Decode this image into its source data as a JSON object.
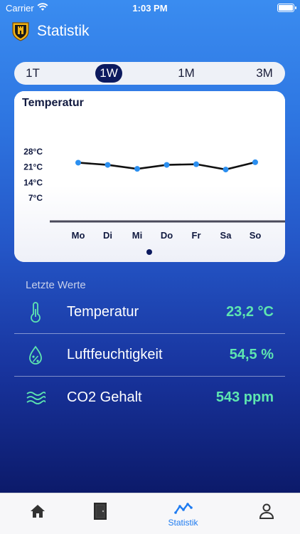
{
  "status_bar": {
    "carrier": "Carrier",
    "time": "1:03 PM"
  },
  "header": {
    "title": "Statistik",
    "logo_icon": "shield-crest-icon"
  },
  "segment": {
    "items": [
      {
        "label": "1T",
        "active": false
      },
      {
        "label": "1W",
        "active": true
      },
      {
        "label": "1M",
        "active": false
      },
      {
        "label": "3M",
        "active": false
      }
    ]
  },
  "chart_data": {
    "type": "line",
    "title": "Temperatur",
    "categories": [
      "Mo",
      "Di",
      "Mi",
      "Do",
      "Fr",
      "Sa",
      "So"
    ],
    "values": [
      23.0,
      22.0,
      20.2,
      22.0,
      22.3,
      19.9,
      23.2
    ],
    "y_ticks": [
      "28°C",
      "21°C",
      "14°C",
      "7°C"
    ],
    "y_tick_values": [
      28,
      21,
      14,
      7
    ],
    "ylim": [
      0,
      30
    ],
    "line_color": "#111111",
    "point_color": "#2b8ff0",
    "grid": false
  },
  "latest": {
    "section_label": "Letzte Werte",
    "rows": [
      {
        "icon": "thermometer-icon",
        "label": "Temperatur",
        "value": "23,2 °C"
      },
      {
        "icon": "humidity-drop-icon",
        "label": "Luftfeuchtigkeit",
        "value": "54,5 %"
      },
      {
        "icon": "waves-icon",
        "label": "CO2 Gehalt",
        "value": "543 ppm"
      }
    ]
  },
  "tabbar": {
    "items": [
      {
        "icon": "home-icon",
        "label": "",
        "active": false
      },
      {
        "icon": "door-icon",
        "label": "",
        "active": false
      },
      {
        "icon": "chart-line-icon",
        "label": "Statistik",
        "active": true
      },
      {
        "icon": "person-icon",
        "label": "",
        "active": false
      }
    ]
  },
  "colors": {
    "accent": "#1e7bf0",
    "value_green": "#5ee6b0",
    "segment_active_bg": "#0c1a5e"
  }
}
